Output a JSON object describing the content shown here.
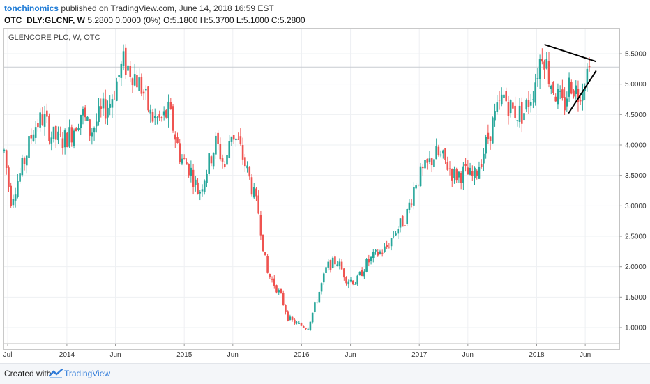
{
  "header": {
    "author": "tonchinomics",
    "published": " published on TradingView.com, June 14, 2018 16:59 EST",
    "symbol": "OTC_DLY:GLCNF, W",
    "quote": " 5.2800 0.0000 (0%) O:5.1800 H:5.3700 L:5.1000 C:5.2800"
  },
  "chart_label": "GLENCORE PLC, W, OTC",
  "footer": {
    "created": "Created with",
    "brand": "TradingView"
  },
  "colors": {
    "up": "#26a69a",
    "down": "#ef5350",
    "grid": "#eef0f3",
    "line": "#000000"
  },
  "chart_data": {
    "type": "candlestick",
    "x_ticks": [
      "Jul",
      "2014",
      "Jun",
      "2015",
      "Jun",
      "2016",
      "Jun",
      "2017",
      "Jun",
      "2018",
      "Jun"
    ],
    "x_tick_dates": [
      "2013-07-01",
      "2014-01-01",
      "2014-06-01",
      "2015-01-01",
      "2015-06-01",
      "2016-01-01",
      "2016-06-01",
      "2017-01-01",
      "2017-06-01",
      "2018-01-01",
      "2018-06-01"
    ],
    "y_ticks": [
      "1.0000",
      "1.5000",
      "2.0000",
      "2.5000",
      "3.0000",
      "3.5000",
      "4.0000",
      "4.5000",
      "5.0000",
      "5.5000"
    ],
    "y_range": [
      0.75,
      5.8
    ],
    "last_price": 5.28,
    "price_path": [
      [
        "2013-06-20",
        3.9
      ],
      [
        "2013-07-10",
        3.1
      ],
      [
        "2013-08-20",
        3.7
      ],
      [
        "2013-09-20",
        4.3
      ],
      [
        "2013-10-20",
        4.45
      ],
      [
        "2013-11-15",
        4.15
      ],
      [
        "2013-12-15",
        4.05
      ],
      [
        "2014-01-15",
        4.2
      ],
      [
        "2014-02-15",
        4.55
      ],
      [
        "2014-03-15",
        4.2
      ],
      [
        "2014-04-15",
        4.5
      ],
      [
        "2014-05-15",
        4.7
      ],
      [
        "2014-06-25",
        5.35
      ],
      [
        "2014-07-25",
        5.2
      ],
      [
        "2014-08-25",
        4.9
      ],
      [
        "2014-09-20",
        4.45
      ],
      [
        "2014-10-20",
        4.4
      ],
      [
        "2014-11-15",
        4.55
      ],
      [
        "2014-12-20",
        3.8
      ],
      [
        "2015-01-20",
        3.6
      ],
      [
        "2015-02-15",
        3.2
      ],
      [
        "2015-03-05",
        3.5
      ],
      [
        "2015-04-10",
        4.05
      ],
      [
        "2015-05-10",
        3.6
      ],
      [
        "2015-05-25",
        4.25
      ],
      [
        "2015-06-20",
        4.0
      ],
      [
        "2015-07-20",
        3.5
      ],
      [
        "2015-08-20",
        2.9
      ],
      [
        "2015-09-15",
        1.9
      ],
      [
        "2015-10-10",
        1.7
      ],
      [
        "2015-10-30",
        1.5
      ],
      [
        "2015-11-20",
        1.15
      ],
      [
        "2015-12-20",
        1.05
      ],
      [
        "2016-01-20",
        1.0
      ],
      [
        "2016-02-20",
        1.5
      ],
      [
        "2016-03-20",
        2.0
      ],
      [
        "2016-04-20",
        2.1
      ],
      [
        "2016-05-20",
        1.8
      ],
      [
        "2016-06-20",
        1.75
      ],
      [
        "2016-07-20",
        2.05
      ],
      [
        "2016-08-20",
        2.2
      ],
      [
        "2016-09-20",
        2.3
      ],
      [
        "2016-10-20",
        2.6
      ],
      [
        "2016-11-20",
        2.8
      ],
      [
        "2016-12-20",
        3.4
      ],
      [
        "2017-01-20",
        3.6
      ],
      [
        "2017-02-20",
        3.85
      ],
      [
        "2017-03-20",
        3.75
      ],
      [
        "2017-04-20",
        3.5
      ],
      [
        "2017-05-20",
        3.55
      ],
      [
        "2017-06-20",
        3.45
      ],
      [
        "2017-07-20",
        3.9
      ],
      [
        "2017-08-20",
        4.4
      ],
      [
        "2017-09-20",
        4.8
      ],
      [
        "2017-10-20",
        4.55
      ],
      [
        "2017-11-20",
        4.5
      ],
      [
        "2017-12-20",
        4.9
      ],
      [
        "2018-01-20",
        5.6
      ],
      [
        "2018-02-10",
        5.1
      ],
      [
        "2018-03-05",
        4.8
      ],
      [
        "2018-03-25",
        4.6
      ],
      [
        "2018-04-15",
        5.05
      ],
      [
        "2018-05-10",
        4.85
      ],
      [
        "2018-05-30",
        5.1
      ],
      [
        "2018-06-14",
        5.28
      ]
    ],
    "trendlines": [
      {
        "from": [
          "2018-01-25",
          5.65
        ],
        "to": [
          "2018-07-05",
          5.37
        ]
      },
      {
        "from": [
          "2018-04-10",
          4.52
        ],
        "to": [
          "2018-07-05",
          5.22
        ]
      }
    ]
  }
}
